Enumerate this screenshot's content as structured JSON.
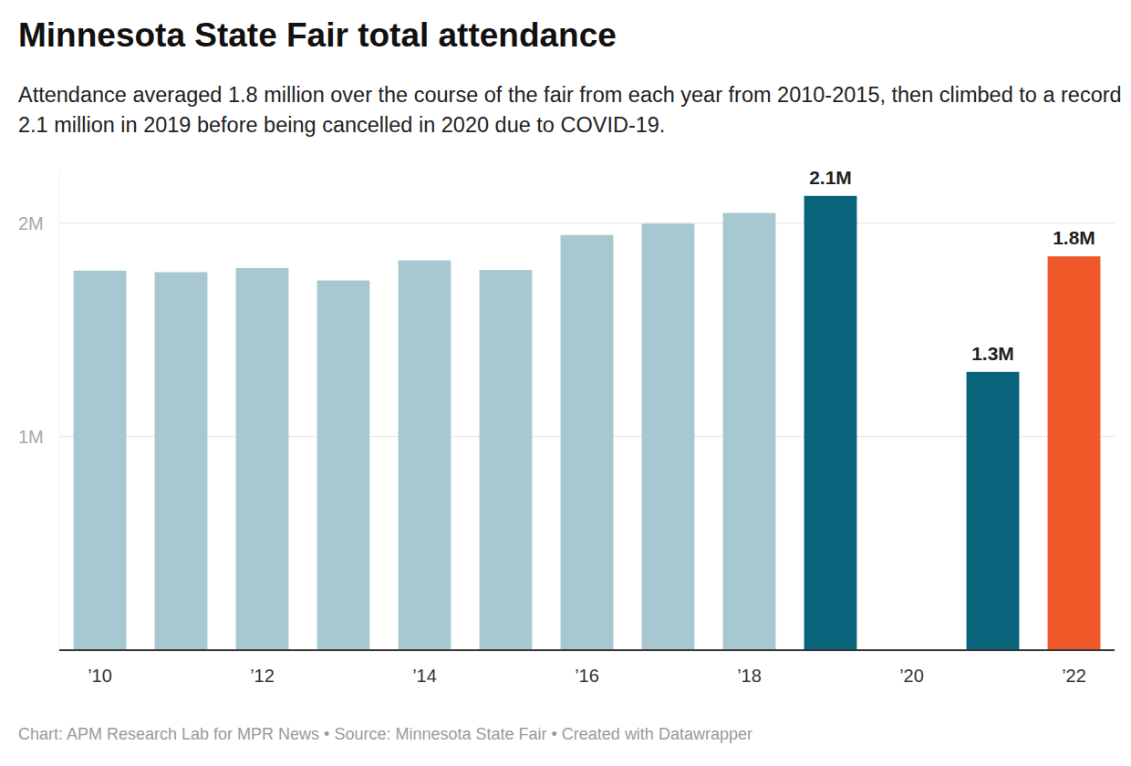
{
  "chart_data": {
    "type": "bar",
    "title": "Minnesota State Fair total attendance",
    "subtitle": "Attendance averaged 1.8 million over the course of the fair from each year from 2010-2015, then climbed to a record 2.1 million in 2019 before being cancelled in 2020 due to COVID-19.",
    "source": "Chart: APM Research Lab for MPR News • Source: Minnesota State Fair • Created with Datawrapper",
    "categories": [
      "’10",
      null,
      "’12",
      null,
      "’14",
      null,
      "’16",
      null,
      "’18",
      null,
      "’20",
      null,
      "’22"
    ],
    "values": [
      1777000,
      1770000,
      1789000,
      1731000,
      1825000,
      1780000,
      1944000,
      1997000,
      2047000,
      2127000,
      null,
      1303000,
      1844000
    ],
    "value_labels": [
      null,
      null,
      null,
      null,
      null,
      null,
      null,
      null,
      null,
      "2.1M",
      null,
      "1.3M",
      "1.8M"
    ],
    "colors": [
      "#a8c8d1",
      "#a8c8d1",
      "#a8c8d1",
      "#a8c8d1",
      "#a8c8d1",
      "#a8c8d1",
      "#a8c8d1",
      "#a8c8d1",
      "#a8c8d1",
      "#08637b",
      "#a8c8d1",
      "#08637b",
      "#f05a2b"
    ],
    "data_labels": true,
    "ylim": [
      0,
      2250000
    ],
    "yticks": [
      {
        "value": 1000000,
        "label": "1M"
      },
      {
        "value": 2000000,
        "label": "2M"
      }
    ],
    "grid": true
  }
}
